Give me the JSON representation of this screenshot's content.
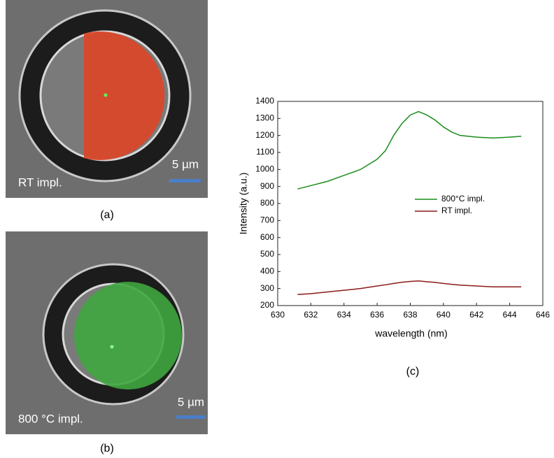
{
  "panels": [
    {
      "label": "RT impl.",
      "scale_bar": "5 µm",
      "caption": "(a)"
    },
    {
      "label": "800 °C impl.",
      "scale_bar": "5 µm",
      "caption": "(b)"
    }
  ],
  "chart_caption": "(c)",
  "chart_data": {
    "type": "line",
    "xlabel": "wavelength (nm)",
    "ylabel": "Intensity (a.u.)",
    "x": [
      631.2,
      632,
      633,
      634,
      635,
      636,
      636.5,
      637,
      637.5,
      638,
      638.5,
      639,
      639.5,
      640,
      640.5,
      641,
      642,
      643,
      644,
      644.7
    ],
    "series": [
      {
        "name": "800°C impl.",
        "color": "#1a8c1a",
        "values": [
          885,
          905,
          930,
          965,
          1000,
          1060,
          1110,
          1200,
          1270,
          1320,
          1340,
          1320,
          1290,
          1250,
          1220,
          1200,
          1190,
          1185,
          1190,
          1195
        ]
      },
      {
        "name": "RT impl.",
        "color": "#8b1a1a",
        "values": [
          265,
          270,
          280,
          290,
          300,
          315,
          322,
          330,
          337,
          342,
          345,
          340,
          336,
          330,
          325,
          320,
          315,
          310,
          310,
          310
        ]
      }
    ],
    "xlim": [
      630,
      646
    ],
    "xticks": [
      630,
      632,
      634,
      636,
      638,
      640,
      642,
      644,
      646
    ],
    "ylim": [
      200,
      1400
    ],
    "yticks": [
      200,
      300,
      400,
      500,
      600,
      700,
      800,
      900,
      1000,
      1100,
      1200,
      1300,
      1400
    ]
  }
}
